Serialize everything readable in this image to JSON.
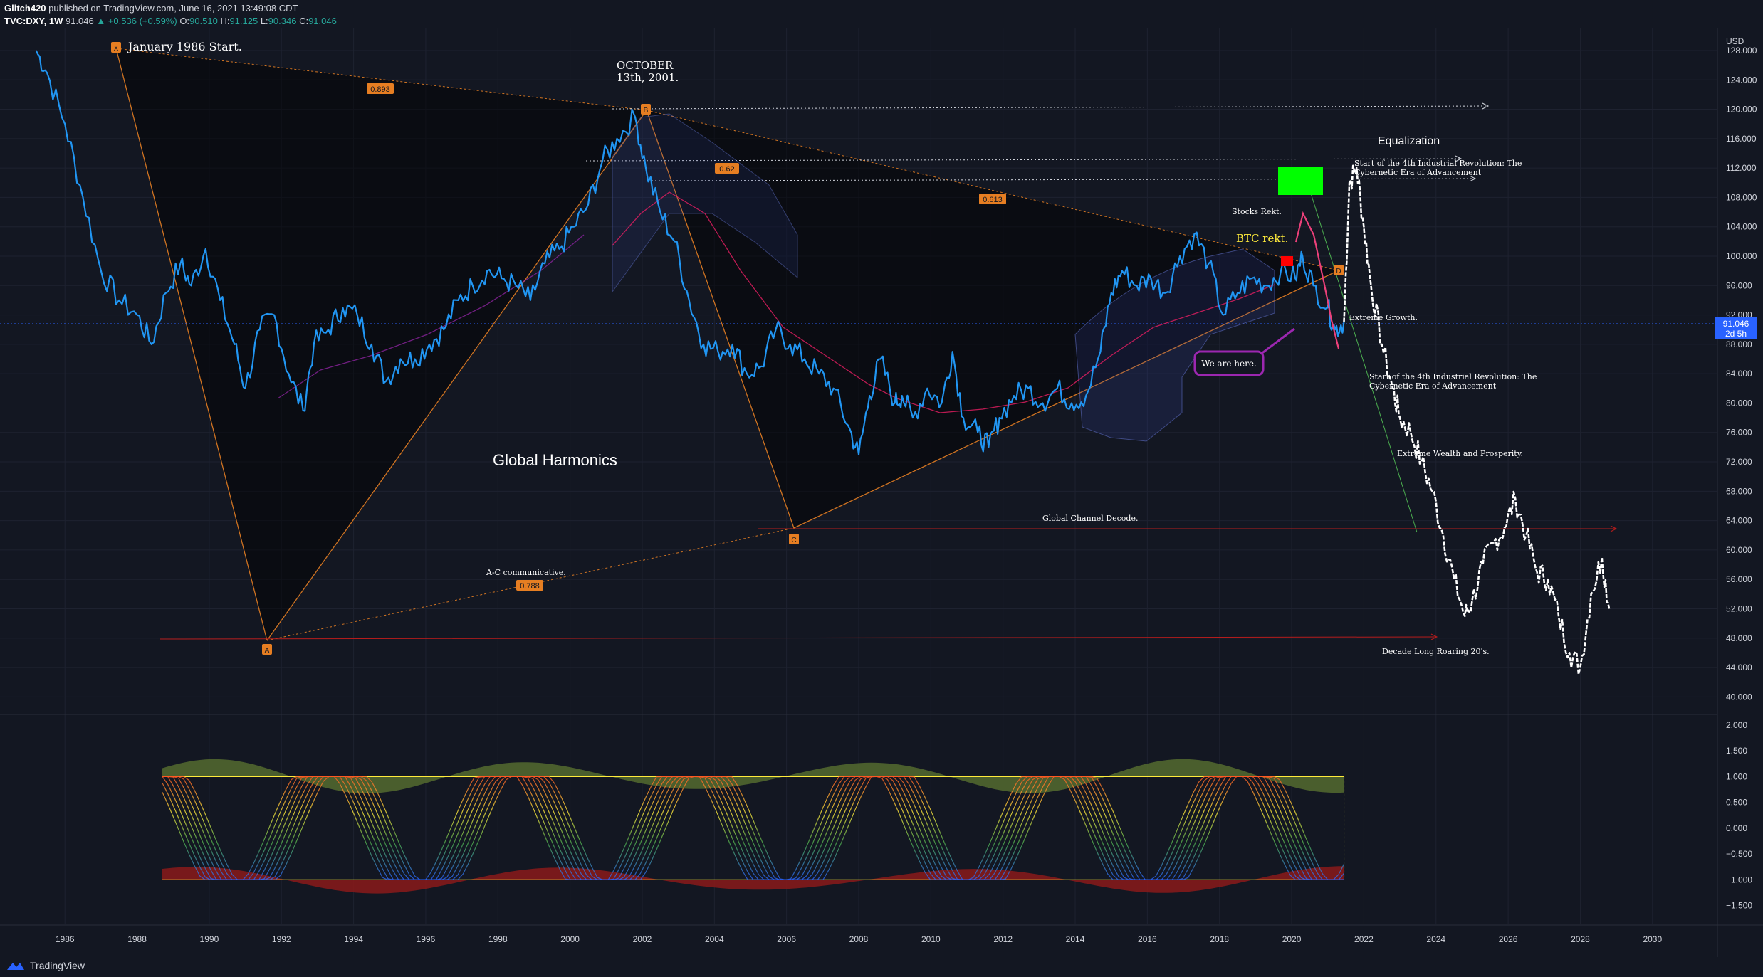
{
  "header": {
    "author": "Glitch420",
    "published": "published on TradingView.com, June 16, 2021 13:49:08 CDT",
    "symbol": "TVC:DXY, 1W",
    "last": "91.046",
    "change": "▲ +0.536 (+0.59%)",
    "o_label": "O:",
    "o": "90.510",
    "h_label": "H:",
    "h": "91.125",
    "l_label": "L:",
    "l": "90.346",
    "c_label": "C:",
    "c": "91.046"
  },
  "price_scale": {
    "currency": "USD",
    "current_price": "91.046",
    "countdown": "2d 5h"
  },
  "annotations": {
    "start": "January 1986 Start.",
    "october_1": "OCTOBER",
    "october_2": "13th, 2001.",
    "equalization": "Equalization",
    "industrial_1a": "Start of the 4th Industrial Revolution: The",
    "industrial_1b": "Cybernetic Era of Advancement",
    "stocks_rekt": "Stocks Rekt.",
    "btc_rekt": "BTC rekt.",
    "extreme_growth": "Extreme Growth.",
    "we_are_here": "We are here.",
    "industrial_2a": "Start of the 4th Industrial Revolution: The",
    "industrial_2b": "Cybernetic Era of Advancement",
    "extreme_wealth": "Extreme Wealth and Prosperity.",
    "global_harmonics": "Global Harmonics",
    "global_channel": "Global Channel Decode.",
    "ac_comm": "A-C communicative.",
    "roaring": "Decade Long Roaring 20's."
  },
  "pattern": {
    "points": [
      "X",
      "A",
      "B",
      "C",
      "D"
    ],
    "ratios": {
      "xb": "0.893",
      "ac": "0.788",
      "bd_1": "0.62",
      "bd_2": "0.613"
    }
  },
  "colors": {
    "background": "#131722",
    "price": "#2196f3",
    "projection": "#ffffff",
    "pattern": "#e67e22",
    "label_bg": "#e67e22",
    "accent_green": "#00ff00",
    "accent_red": "#ff0000",
    "callout_border": "#9c27b0"
  },
  "footer": {
    "brand": "TradingView",
    "icon": "tradingview-logo-icon"
  },
  "chart_data": [
    {
      "type": "line",
      "title": "",
      "xlabel": "",
      "ylabel": "USD",
      "x_ticks": [
        "1986",
        "1988",
        "1990",
        "1992",
        "1994",
        "1996",
        "1998",
        "2000",
        "2002",
        "2004",
        "2006",
        "2008",
        "2010",
        "2012",
        "2014",
        "2016",
        "2018",
        "2020",
        "2022",
        "2024",
        "2026",
        "2028",
        "2030"
      ],
      "y_ticks": [
        "128.000",
        "124.000",
        "120.000",
        "116.000",
        "112.000",
        "108.000",
        "104.000",
        "100.000",
        "96.000",
        "92.000",
        "88.000",
        "84.000",
        "80.000",
        "76.000",
        "72.000",
        "68.000",
        "64.000",
        "60.000",
        "56.000",
        "52.000",
        "48.000",
        "44.000",
        "40.000"
      ],
      "ylim": [
        38,
        131
      ],
      "xlim": [
        1984.2,
        2031.8
      ],
      "series": [
        {
          "name": "",
          "x": [
            1985.2,
            1985.5,
            1986.0,
            1986.5,
            1987.0,
            1987.5,
            1988.0,
            1988.4,
            1988.8,
            1989.2,
            1989.5,
            1989.9,
            1990.3,
            1990.7,
            1991.0,
            1991.4,
            1991.8,
            1992.2,
            1992.6,
            1992.9,
            1993.3,
            1993.7,
            1994.1,
            1994.5,
            1994.9,
            1995.3,
            1995.7,
            1996.1,
            1996.5,
            1996.9,
            1997.3,
            1997.7,
            1998.1,
            1998.5,
            1998.9,
            1999.3,
            1999.7,
            2000.1,
            2000.5,
            2000.9,
            2001.3,
            2001.8,
            2002.1,
            2002.5,
            2002.9,
            2003.3,
            2003.7,
            2004.1,
            2004.5,
            2004.9,
            2005.3,
            2005.7,
            2006.1,
            2006.5,
            2006.9,
            2007.3,
            2007.7,
            2008.0,
            2008.3,
            2008.6,
            2009.0,
            2009.2,
            2009.5,
            2009.9,
            2010.3,
            2010.6,
            2010.9,
            2011.3,
            2011.6,
            2011.9,
            2012.3,
            2012.7,
            2013.1,
            2013.5,
            2013.9,
            2014.3,
            2014.7,
            2015.0,
            2015.3,
            2015.7,
            2016.1,
            2016.5,
            2016.9,
            2017.3,
            2017.7,
            2018.1,
            2018.5,
            2018.9,
            2019.3,
            2019.7,
            2020.1,
            2020.3,
            2020.6,
            2021.0,
            2021.2,
            2021.45
          ],
          "values": [
            128,
            125,
            118,
            108,
            98,
            94,
            92,
            88,
            95,
            99,
            96,
            101,
            94,
            88,
            82,
            90,
            92,
            84,
            79,
            88,
            90,
            93,
            92,
            88,
            83,
            86,
            86,
            88,
            90,
            94,
            96,
            98,
            97,
            96,
            94,
            99,
            101,
            104,
            107,
            113,
            116,
            119,
            112,
            106,
            102,
            94,
            88,
            87,
            88,
            84,
            85,
            90,
            88,
            86,
            84,
            82,
            77,
            73,
            81,
            86,
            80,
            81,
            78,
            82,
            80,
            87,
            78,
            76,
            74,
            78,
            81,
            82,
            80,
            82,
            80,
            81,
            87,
            95,
            98,
            96,
            97,
            95,
            100,
            103,
            99,
            92,
            95,
            97,
            96,
            98,
            97,
            100,
            96,
            93,
            90,
            91.046
          ]
        },
        {
          "name": "",
          "x": [
            2021.45,
            2021.6,
            2021.8,
            2022.0,
            2022.2,
            2022.5,
            2022.8,
            2023.0,
            2023.3,
            2023.6,
            2023.9,
            2024.2,
            2024.5,
            2024.8,
            2025.0,
            2025.3,
            2025.6,
            2025.9,
            2026.2,
            2026.5,
            2026.8,
            2027.1,
            2027.4,
            2027.7,
            2028.0,
            2028.3,
            2028.6,
            2028.8
          ],
          "values": [
            91.046,
            110,
            112,
            104,
            96,
            88,
            82,
            78,
            76,
            72,
            68,
            62,
            56,
            51,
            53,
            58,
            61,
            63,
            67,
            62,
            57,
            56,
            51,
            46,
            44,
            54,
            59,
            52
          ]
        }
      ]
    },
    {
      "type": "area",
      "title": "",
      "ylabel": "",
      "y_ticks": [
        "2.000",
        "1.500",
        "1.000",
        "0.500",
        "0.000",
        "−0.500",
        "−1.000",
        "−1.500"
      ],
      "ylim": [
        -1.85,
        2.15
      ]
    }
  ]
}
